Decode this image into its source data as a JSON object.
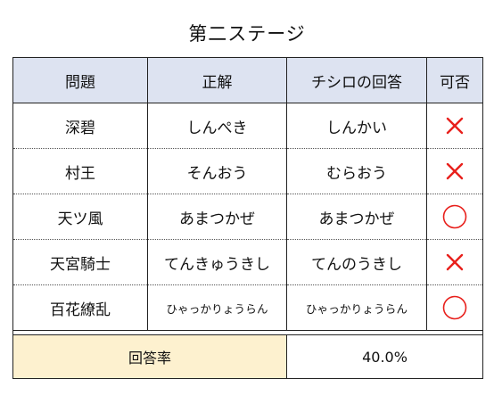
{
  "title": "第二ステージ",
  "headers": [
    "問題",
    "正解",
    "チシロの回答",
    "可否"
  ],
  "rows": [
    {
      "question": "深碧",
      "answer": "しんぺき",
      "response": "しんかい",
      "result": "wrong"
    },
    {
      "question": "村王",
      "answer": "そんおう",
      "response": "むらおう",
      "result": "wrong"
    },
    {
      "question": "天ツ風",
      "answer": "あまつかぜ",
      "response": "あまつかぜ",
      "result": "correct"
    },
    {
      "question": "天宮騎士",
      "answer": "てんきゅうきし",
      "response": "てんのうきし",
      "result": "wrong"
    },
    {
      "question": "百花繚乱",
      "answer": "ひゃっかりょうらん",
      "response": "ひゃっかりょうらん",
      "result": "correct"
    }
  ],
  "score": {
    "label": "回答率",
    "value": "40.0%"
  },
  "colors": {
    "mark": "#e8201c",
    "header_bg": "#dde3f1",
    "score_bg": "#fdf1cf"
  },
  "icons": {
    "correct": "circle-icon",
    "wrong": "cross-icon"
  }
}
